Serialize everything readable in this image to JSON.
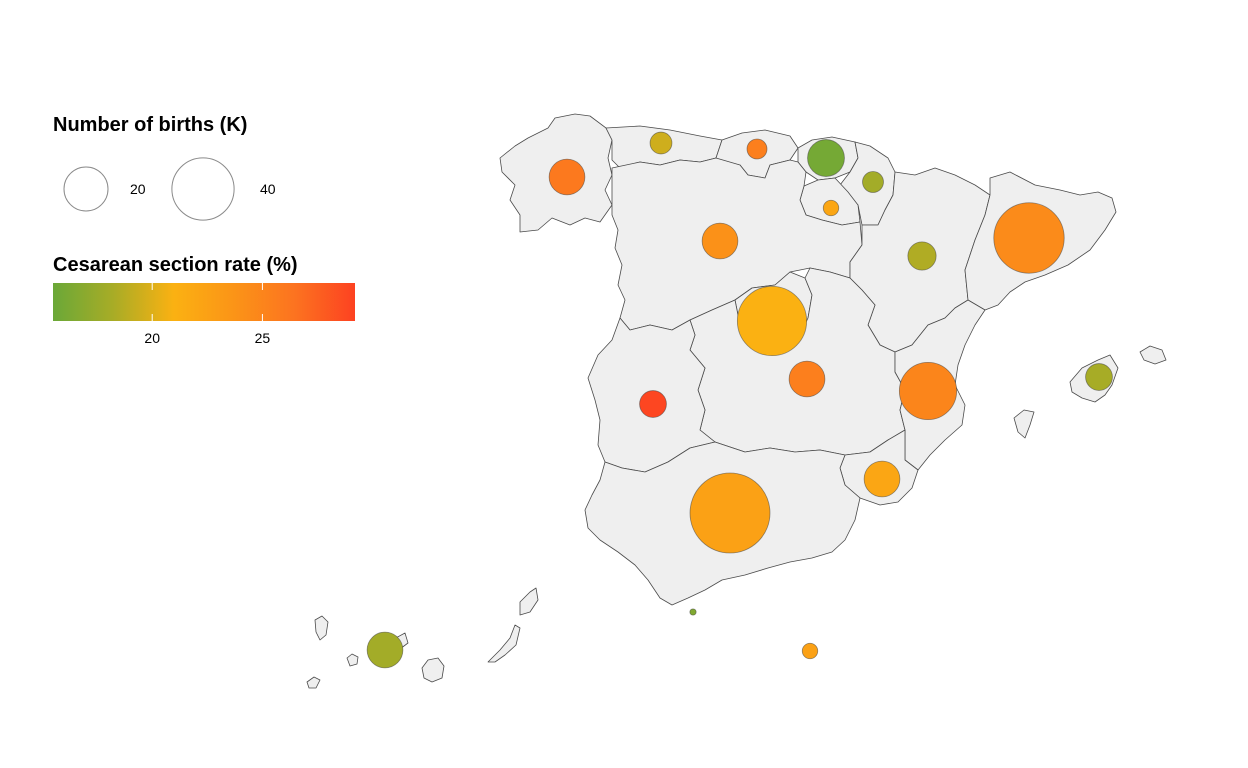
{
  "legend": {
    "size_title": "Number of births (K)",
    "size_keys": [
      {
        "value": 20,
        "label": "20"
      },
      {
        "value": 40,
        "label": "40"
      }
    ],
    "color_title": "Cesarean section rate (%)",
    "color_min": 15.5,
    "color_max": 29.2,
    "color_ticks": [
      {
        "value": 20,
        "label": "20"
      },
      {
        "value": 25,
        "label": "25"
      }
    ],
    "colors": [
      "#6aa838",
      "#a8ac26",
      "#fbb112",
      "#fb9417",
      "#fc7320",
      "#fd4221"
    ]
  },
  "chart_data": {
    "type": "bubble-map",
    "region": "Spain (autonomous communities)",
    "points": [
      {
        "id": "galicia",
        "births_k": 16,
        "cesarean_rate": 26.0
      },
      {
        "id": "asturias",
        "births_k": 6,
        "cesarean_rate": 19.5
      },
      {
        "id": "cantabria",
        "births_k": 5,
        "cesarean_rate": 25.5
      },
      {
        "id": "pais-vasco",
        "births_k": 17,
        "cesarean_rate": 16.0
      },
      {
        "id": "navarra",
        "births_k": 5.5,
        "cesarean_rate": 18.0
      },
      {
        "id": "la-rioja",
        "births_k": 3,
        "cesarean_rate": 22.0
      },
      {
        "id": "castilla-y-leon",
        "births_k": 16,
        "cesarean_rate": 24.0
      },
      {
        "id": "aragon",
        "births_k": 10,
        "cesarean_rate": 18.5
      },
      {
        "id": "cataluna",
        "births_k": 62,
        "cesarean_rate": 24.5
      },
      {
        "id": "madrid",
        "births_k": 60,
        "cesarean_rate": 21.0
      },
      {
        "id": "castilla-la-mancha",
        "births_k": 16,
        "cesarean_rate": 25.5
      },
      {
        "id": "comunidad-valenciana",
        "births_k": 41,
        "cesarean_rate": 25.0
      },
      {
        "id": "extremadura",
        "births_k": 9,
        "cesarean_rate": 29.0
      },
      {
        "id": "murcia",
        "births_k": 16,
        "cesarean_rate": 22.0
      },
      {
        "id": "andalucia",
        "births_k": 80,
        "cesarean_rate": 22.5
      },
      {
        "id": "baleares",
        "births_k": 9,
        "cesarean_rate": 18.2
      },
      {
        "id": "canarias",
        "births_k": 16,
        "cesarean_rate": 18.0
      },
      {
        "id": "ceuta",
        "births_k": 0.5,
        "cesarean_rate": 16.5
      },
      {
        "id": "melilla",
        "births_k": 3,
        "cesarean_rate": 22.5
      }
    ]
  }
}
